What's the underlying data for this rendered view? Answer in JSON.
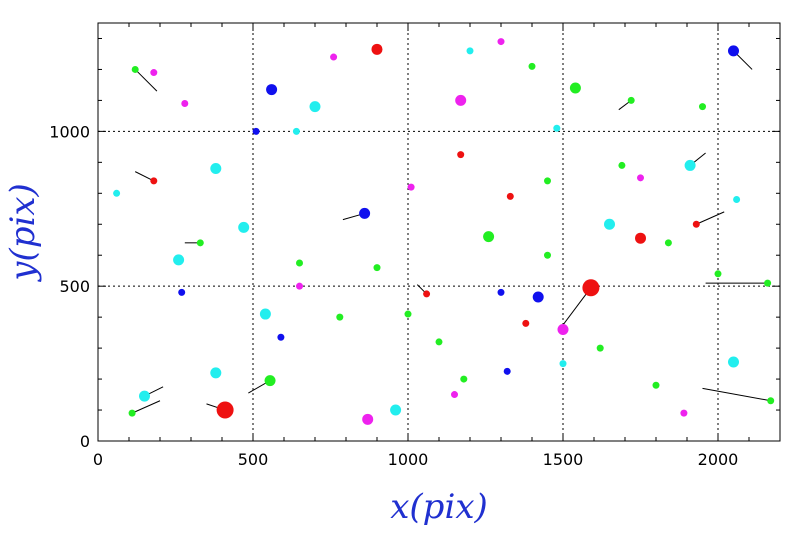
{
  "chart_data": {
    "type": "scatter",
    "title": "",
    "xlabel": "x(pix)",
    "ylabel": "y(pix)",
    "xlim": [
      0,
      2200
    ],
    "ylim": [
      0,
      1350
    ],
    "xticks": [
      0,
      500,
      1000,
      1500,
      2000
    ],
    "yticks": [
      0,
      500,
      1000
    ],
    "grid": "dotted lines at x = 500, 1000, 1500, 2000 and y = 500, 1000",
    "legend": "none",
    "encoding": "each point has a short black vector segment; marker color and size vary",
    "colors": {
      "green": "#22ee22",
      "cyan": "#22eeee",
      "magenta": "#ee22ee",
      "red": "#ee1111",
      "blue": "#1010ee"
    },
    "points": [
      {
        "x": 410,
        "y": 100,
        "color": "red",
        "size": 3,
        "dx": -60,
        "dy": 20
      },
      {
        "x": 1590,
        "y": 495,
        "color": "red",
        "size": 3,
        "dx": -90,
        "dy": -120
      },
      {
        "x": 900,
        "y": 1265,
        "color": "red",
        "size": 2,
        "dx": 0,
        "dy": 0
      },
      {
        "x": 1750,
        "y": 655,
        "color": "red",
        "size": 2,
        "dx": 0,
        "dy": 0
      },
      {
        "x": 1930,
        "y": 700,
        "color": "red",
        "size": 1,
        "dx": 90,
        "dy": 40
      },
      {
        "x": 1060,
        "y": 475,
        "color": "red",
        "size": 1,
        "dx": -30,
        "dy": 30
      },
      {
        "x": 180,
        "y": 840,
        "color": "red",
        "size": 1,
        "dx": -60,
        "dy": 30
      },
      {
        "x": 1170,
        "y": 925,
        "color": "red",
        "size": 1,
        "dx": 0,
        "dy": 0
      },
      {
        "x": 1330,
        "y": 790,
        "color": "red",
        "size": 1,
        "dx": 0,
        "dy": 0
      },
      {
        "x": 1380,
        "y": 380,
        "color": "red",
        "size": 1,
        "dx": 0,
        "dy": 0
      },
      {
        "x": 860,
        "y": 735,
        "color": "blue",
        "size": 2,
        "dx": -70,
        "dy": -20
      },
      {
        "x": 560,
        "y": 1135,
        "color": "blue",
        "size": 2,
        "dx": 0,
        "dy": 0
      },
      {
        "x": 2050,
        "y": 1260,
        "color": "blue",
        "size": 2,
        "dx": 60,
        "dy": -60
      },
      {
        "x": 1420,
        "y": 465,
        "color": "blue",
        "size": 2,
        "dx": 0,
        "dy": 0
      },
      {
        "x": 1300,
        "y": 480,
        "color": "blue",
        "size": 1,
        "dx": 0,
        "dy": 0
      },
      {
        "x": 270,
        "y": 480,
        "color": "blue",
        "size": 1,
        "dx": 0,
        "dy": 0
      },
      {
        "x": 510,
        "y": 1000,
        "color": "blue",
        "size": 1,
        "dx": 0,
        "dy": 0
      },
      {
        "x": 1320,
        "y": 225,
        "color": "blue",
        "size": 1,
        "dx": 0,
        "dy": 0
      },
      {
        "x": 590,
        "y": 335,
        "color": "blue",
        "size": 1,
        "dx": 0,
        "dy": 0
      },
      {
        "x": 1260,
        "y": 660,
        "color": "green",
        "size": 2,
        "dx": 0,
        "dy": 0
      },
      {
        "x": 555,
        "y": 195,
        "color": "green",
        "size": 2,
        "dx": -70,
        "dy": -40
      },
      {
        "x": 1540,
        "y": 1140,
        "color": "green",
        "size": 2,
        "dx": 0,
        "dy": 0
      },
      {
        "x": 1400,
        "y": 1210,
        "color": "green",
        "size": 1,
        "dx": 0,
        "dy": 0
      },
      {
        "x": 1690,
        "y": 890,
        "color": "green",
        "size": 1,
        "dx": 0,
        "dy": 0
      },
      {
        "x": 1720,
        "y": 1100,
        "color": "green",
        "size": 1,
        "dx": -40,
        "dy": -30
      },
      {
        "x": 120,
        "y": 1200,
        "color": "green",
        "size": 1,
        "dx": 70,
        "dy": -70
      },
      {
        "x": 110,
        "y": 90,
        "color": "green",
        "size": 1,
        "dx": 90,
        "dy": 40
      },
      {
        "x": 2160,
        "y": 510,
        "color": "green",
        "size": 1,
        "dx": -200,
        "dy": 0
      },
      {
        "x": 2170,
        "y": 130,
        "color": "green",
        "size": 1,
        "dx": -220,
        "dy": 40
      },
      {
        "x": 1950,
        "y": 1080,
        "color": "green",
        "size": 1,
        "dx": 0,
        "dy": 0
      },
      {
        "x": 1000,
        "y": 410,
        "color": "green",
        "size": 1,
        "dx": 0,
        "dy": 0
      },
      {
        "x": 650,
        "y": 575,
        "color": "green",
        "size": 1,
        "dx": 0,
        "dy": 0
      },
      {
        "x": 1450,
        "y": 840,
        "color": "green",
        "size": 1,
        "dx": 0,
        "dy": 0
      },
      {
        "x": 780,
        "y": 400,
        "color": "green",
        "size": 1,
        "dx": 0,
        "dy": 0
      },
      {
        "x": 1180,
        "y": 200,
        "color": "green",
        "size": 1,
        "dx": 0,
        "dy": 0
      },
      {
        "x": 1840,
        "y": 640,
        "color": "green",
        "size": 1,
        "dx": 0,
        "dy": 0
      },
      {
        "x": 330,
        "y": 640,
        "color": "green",
        "size": 1,
        "dx": -50,
        "dy": 0
      },
      {
        "x": 1620,
        "y": 300,
        "color": "green",
        "size": 1,
        "dx": 0,
        "dy": 0
      },
      {
        "x": 900,
        "y": 560,
        "color": "green",
        "size": 1,
        "dx": 0,
        "dy": 0
      },
      {
        "x": 1100,
        "y": 320,
        "color": "green",
        "size": 1,
        "dx": 0,
        "dy": 0
      },
      {
        "x": 2000,
        "y": 540,
        "color": "green",
        "size": 1,
        "dx": 0,
        "dy": 0
      },
      {
        "x": 1800,
        "y": 180,
        "color": "green",
        "size": 1,
        "dx": 0,
        "dy": 0
      },
      {
        "x": 1450,
        "y": 600,
        "color": "green",
        "size": 1,
        "dx": 0,
        "dy": 0
      },
      {
        "x": 700,
        "y": 1080,
        "color": "cyan",
        "size": 2,
        "dx": 0,
        "dy": 0
      },
      {
        "x": 470,
        "y": 690,
        "color": "cyan",
        "size": 2,
        "dx": 0,
        "dy": 0
      },
      {
        "x": 540,
        "y": 410,
        "color": "cyan",
        "size": 2,
        "dx": 0,
        "dy": 0
      },
      {
        "x": 2050,
        "y": 255,
        "color": "cyan",
        "size": 2,
        "dx": 0,
        "dy": 0
      },
      {
        "x": 1910,
        "y": 890,
        "color": "cyan",
        "size": 2,
        "dx": 50,
        "dy": 40
      },
      {
        "x": 960,
        "y": 100,
        "color": "cyan",
        "size": 2,
        "dx": 0,
        "dy": 0
      },
      {
        "x": 260,
        "y": 585,
        "color": "cyan",
        "size": 2,
        "dx": 0,
        "dy": 0
      },
      {
        "x": 380,
        "y": 880,
        "color": "cyan",
        "size": 2,
        "dx": 0,
        "dy": 0
      },
      {
        "x": 1650,
        "y": 700,
        "color": "cyan",
        "size": 2,
        "dx": 0,
        "dy": 0
      },
      {
        "x": 150,
        "y": 145,
        "color": "cyan",
        "size": 2,
        "dx": 60,
        "dy": 30
      },
      {
        "x": 380,
        "y": 220,
        "color": "cyan",
        "size": 2,
        "dx": 0,
        "dy": 0
      },
      {
        "x": 1500,
        "y": 250,
        "color": "cyan",
        "size": 1,
        "dx": 0,
        "dy": 0
      },
      {
        "x": 640,
        "y": 1000,
        "color": "cyan",
        "size": 1,
        "dx": 0,
        "dy": 0
      },
      {
        "x": 1480,
        "y": 1010,
        "color": "cyan",
        "size": 1,
        "dx": 0,
        "dy": 0
      },
      {
        "x": 1200,
        "y": 1260,
        "color": "cyan",
        "size": 1,
        "dx": 0,
        "dy": 0
      },
      {
        "x": 60,
        "y": 800,
        "color": "cyan",
        "size": 1,
        "dx": 0,
        "dy": 0
      },
      {
        "x": 2060,
        "y": 780,
        "color": "cyan",
        "size": 1,
        "dx": 0,
        "dy": 0
      },
      {
        "x": 870,
        "y": 70,
        "color": "magenta",
        "size": 2,
        "dx": 0,
        "dy": 0
      },
      {
        "x": 1500,
        "y": 360,
        "color": "magenta",
        "size": 2,
        "dx": 0,
        "dy": 0
      },
      {
        "x": 1170,
        "y": 1100,
        "color": "magenta",
        "size": 2,
        "dx": 0,
        "dy": 0
      },
      {
        "x": 1750,
        "y": 850,
        "color": "magenta",
        "size": 1,
        "dx": 0,
        "dy": 0
      },
      {
        "x": 180,
        "y": 1190,
        "color": "magenta",
        "size": 1,
        "dx": 0,
        "dy": 0
      },
      {
        "x": 280,
        "y": 1090,
        "color": "magenta",
        "size": 1,
        "dx": 0,
        "dy": 0
      },
      {
        "x": 1890,
        "y": 90,
        "color": "magenta",
        "size": 1,
        "dx": 0,
        "dy": 0
      },
      {
        "x": 1300,
        "y": 1290,
        "color": "magenta",
        "size": 1,
        "dx": 0,
        "dy": 0
      },
      {
        "x": 1150,
        "y": 150,
        "color": "magenta",
        "size": 1,
        "dx": 0,
        "dy": 0
      },
      {
        "x": 650,
        "y": 500,
        "color": "magenta",
        "size": 1,
        "dx": 0,
        "dy": 0
      },
      {
        "x": 760,
        "y": 1240,
        "color": "magenta",
        "size": 1,
        "dx": 0,
        "dy": 0
      },
      {
        "x": 1010,
        "y": 820,
        "color": "magenta",
        "size": 1,
        "dx": 0,
        "dy": 0
      }
    ]
  }
}
